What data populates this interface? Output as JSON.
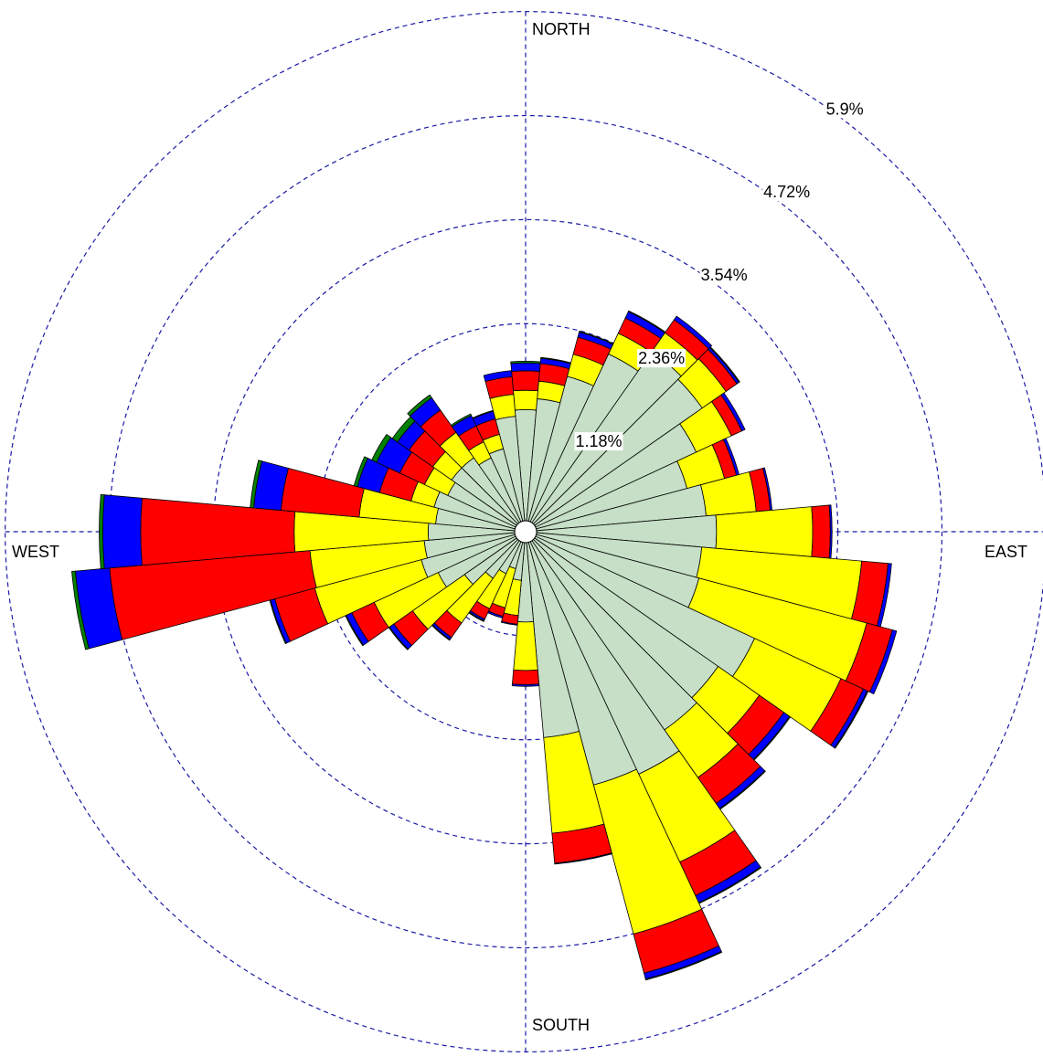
{
  "chart_data": {
    "type": "wind-rose",
    "direction_labels": {
      "north": "NORTH",
      "east": "EAST",
      "south": "SOUTH",
      "west": "WEST"
    },
    "radial_ticks": [
      {
        "value": 1.18,
        "label": "1.18%"
      },
      {
        "value": 2.36,
        "label": "2.36%"
      },
      {
        "value": 3.54,
        "label": "3.54%"
      },
      {
        "value": 4.72,
        "label": "4.72%"
      },
      {
        "value": 5.9,
        "label": "5.9%"
      }
    ],
    "grid": true,
    "sector_count": 36,
    "sector_width_deg": 10,
    "series_colors": [
      "#c6dfc6",
      "#ffff00",
      "#ff0000",
      "#0000ff",
      "#008000"
    ],
    "cumulative_percent": [
      [
        1.26,
        1.48,
        1.7,
        1.79,
        1.81
      ],
      [
        1.39,
        1.59,
        1.79,
        1.85,
        1.86
      ],
      [
        1.7,
        1.96,
        2.16,
        2.22,
        2.23
      ],
      [
        2.1,
        2.36,
        2.55,
        2.63,
        2.64
      ],
      [
        2.37,
        2.63,
        2.81,
        2.86,
        2.86
      ],
      [
        2.32,
        2.65,
        2.8,
        2.83,
        2.84
      ],
      [
        2.01,
        2.45,
        2.58,
        2.62,
        2.62
      ],
      [
        1.77,
        2.21,
        2.35,
        2.38,
        2.38
      ],
      [
        1.93,
        2.5,
        2.66,
        2.68,
        2.68
      ],
      [
        2.04,
        3.13,
        3.33,
        3.35,
        3.35
      ],
      [
        1.88,
        3.7,
        4.0,
        4.04,
        4.04
      ],
      [
        1.91,
        3.88,
        4.18,
        4.23,
        4.23
      ],
      [
        2.74,
        3.82,
        4.1,
        4.15,
        4.16
      ],
      [
        2.54,
        3.11,
        3.45,
        3.53,
        3.54
      ],
      [
        2.62,
        3.28,
        3.64,
        3.71,
        3.72
      ],
      [
        2.91,
        4.01,
        4.43,
        4.52,
        4.53
      ],
      [
        2.85,
        4.6,
        5.06,
        5.13,
        5.14
      ],
      [
        2.22,
        3.31,
        3.65,
        3.66,
        3.66
      ],
      [
        0.9,
        1.45,
        1.61,
        1.63,
        1.63
      ],
      [
        0.43,
        0.83,
        0.93,
        0.94,
        0.94
      ],
      [
        0.31,
        0.77,
        0.87,
        0.89,
        0.89
      ],
      [
        0.4,
        0.84,
        0.97,
        0.99,
        1.0
      ],
      [
        0.52,
        1.14,
        1.34,
        1.37,
        1.38
      ],
      [
        0.72,
        1.44,
        1.7,
        1.76,
        1.77
      ],
      [
        0.97,
        1.77,
        2.05,
        2.12,
        2.13
      ],
      [
        1.1,
        2.35,
        2.82,
        2.87,
        2.88
      ],
      [
        1.03,
        2.33,
        4.61,
        5.0,
        5.04
      ],
      [
        0.98,
        2.5,
        4.24,
        4.67,
        4.71
      ],
      [
        0.9,
        1.77,
        2.66,
        2.97,
        3.01
      ],
      [
        0.95,
        1.22,
        1.59,
        1.85,
        1.89
      ],
      [
        0.85,
        1.14,
        1.45,
        1.74,
        1.8
      ],
      [
        0.9,
        1.16,
        1.49,
        1.65,
        1.72
      ],
      [
        0.9,
        1.25,
        1.56,
        1.73,
        1.77
      ],
      [
        0.8,
        1.0,
        1.2,
        1.33,
        1.35
      ],
      [
        0.85,
        1.02,
        1.2,
        1.29,
        1.3
      ],
      [
        1.19,
        1.44,
        1.64,
        1.71,
        1.71
      ]
    ]
  }
}
